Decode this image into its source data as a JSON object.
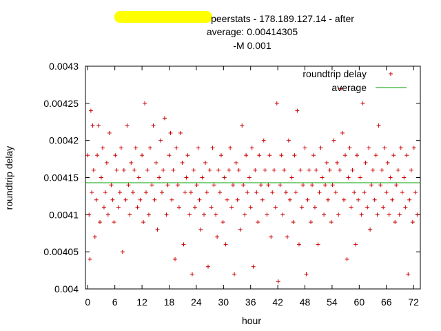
{
  "chart_data": {
    "type": "scatter",
    "title_lines": [
      "peerstats - 178.189.127.14 - after",
      "average: 0.00414305",
      "-M 0.001"
    ],
    "xlabel": "hour",
    "ylabel": "roundtrip delay",
    "xlim": [
      -0.5,
      73.5
    ],
    "ylim": [
      0.004,
      0.0043
    ],
    "x_ticks": [
      0,
      6,
      12,
      18,
      24,
      30,
      36,
      42,
      48,
      54,
      60,
      66,
      72
    ],
    "y_ticks": [
      0.004,
      0.00405,
      0.0041,
      0.00415,
      0.0042,
      0.00425,
      0.0043
    ],
    "y_tick_labels": [
      "0.004",
      "0.00405",
      "0.0041",
      "0.00415",
      "0.0042",
      "0.00425",
      "0.0043"
    ],
    "grid": false,
    "legend_position": "top-right",
    "series": [
      {
        "name": "roundtrip delay",
        "marker": "plus",
        "color": "#cc0000",
        "points": [
          [
            0.0,
            0.00418
          ],
          [
            0.3,
            0.0041
          ],
          [
            0.5,
            0.00404
          ],
          [
            0.7,
            0.00424
          ],
          [
            0.9,
            0.00413
          ],
          [
            1.1,
            0.00422
          ],
          [
            1.3,
            0.00416
          ],
          [
            1.6,
            0.00407
          ],
          [
            1.9,
            0.00412
          ],
          [
            2.1,
            0.00418
          ],
          [
            2.4,
            0.00422
          ],
          [
            2.7,
            0.00409
          ],
          [
            3.0,
            0.00415
          ],
          [
            3.3,
            0.00419
          ],
          [
            3.6,
            0.00411
          ],
          [
            3.9,
            0.00413
          ],
          [
            4.2,
            0.00417
          ],
          [
            4.5,
            0.0041
          ],
          [
            4.8,
            0.00421
          ],
          [
            5.2,
            0.00414
          ],
          [
            5.5,
            0.00412
          ],
          [
            5.8,
            0.00409
          ],
          [
            6.1,
            0.00418
          ],
          [
            6.4,
            0.00416
          ],
          [
            6.8,
            0.00411
          ],
          [
            7.1,
            0.00413
          ],
          [
            7.4,
            0.00419
          ],
          [
            7.7,
            0.00405
          ],
          [
            8.0,
            0.00416
          ],
          [
            8.4,
            0.00412
          ],
          [
            8.7,
            0.00422
          ],
          [
            9.0,
            0.00414
          ],
          [
            9.3,
            0.0041
          ],
          [
            9.6,
            0.00417
          ],
          [
            10.0,
            0.00413
          ],
          [
            10.3,
            0.00416
          ],
          [
            10.6,
            0.00419
          ],
          [
            11.0,
            0.00411
          ],
          [
            11.3,
            0.00415
          ],
          [
            11.6,
            0.00412
          ],
          [
            12.0,
            0.00418
          ],
          [
            12.3,
            0.00409
          ],
          [
            12.6,
            0.00425
          ],
          [
            12.9,
            0.00413
          ],
          [
            13.2,
            0.00416
          ],
          [
            13.5,
            0.0041
          ],
          [
            13.8,
            0.00419
          ],
          [
            14.2,
            0.00414
          ],
          [
            14.5,
            0.00422
          ],
          [
            14.8,
            0.00412
          ],
          [
            15.1,
            0.00417
          ],
          [
            15.4,
            0.00408
          ],
          [
            15.8,
            0.00415
          ],
          [
            16.1,
            0.0042
          ],
          [
            16.4,
            0.00413
          ],
          [
            16.7,
            0.00416
          ],
          [
            17.0,
            0.00423
          ],
          [
            17.4,
            0.0041
          ],
          [
            17.7,
            0.00414
          ],
          [
            18.0,
            0.00418
          ],
          [
            18.3,
            0.00421
          ],
          [
            18.6,
            0.00412
          ],
          [
            18.9,
            0.00416
          ],
          [
            19.3,
            0.00404
          ],
          [
            19.6,
            0.00419
          ],
          [
            19.9,
            0.00414
          ],
          [
            20.2,
            0.00411
          ],
          [
            20.5,
            0.00421
          ],
          [
            20.9,
            0.00417
          ],
          [
            21.2,
            0.00406
          ],
          [
            21.5,
            0.00413
          ],
          [
            21.8,
            0.00415
          ],
          [
            22.1,
            0.00418
          ],
          [
            22.5,
            0.0041
          ],
          [
            22.8,
            0.00413
          ],
          [
            23.1,
            0.00402
          ],
          [
            23.4,
            0.00416
          ],
          [
            23.7,
            0.00411
          ],
          [
            24.1,
            0.00414
          ],
          [
            24.4,
            0.00419
          ],
          [
            24.7,
            0.00412
          ],
          [
            25.0,
            0.00408
          ],
          [
            25.3,
            0.00415
          ],
          [
            25.7,
            0.0041
          ],
          [
            26.0,
            0.00417
          ],
          [
            26.3,
            0.00413
          ],
          [
            26.6,
            0.00403
          ],
          [
            27.0,
            0.00416
          ],
          [
            27.3,
            0.00411
          ],
          [
            27.6,
            0.00419
          ],
          [
            27.9,
            0.00414
          ],
          [
            28.3,
            0.0041
          ],
          [
            28.6,
            0.00407
          ],
          [
            28.9,
            0.00416
          ],
          [
            29.2,
            0.00413
          ],
          [
            29.5,
            0.00418
          ],
          [
            29.9,
            0.00409
          ],
          [
            30.2,
            0.00415
          ],
          [
            30.5,
            0.00406
          ],
          [
            30.8,
            0.00412
          ],
          [
            31.2,
            0.00416
          ],
          [
            31.5,
            0.00419
          ],
          [
            31.8,
            0.00411
          ],
          [
            32.1,
            0.00414
          ],
          [
            32.4,
            0.00402
          ],
          [
            32.8,
            0.00417
          ],
          [
            33.1,
            0.00412
          ],
          [
            33.4,
            0.00416
          ],
          [
            33.7,
            0.00408
          ],
          [
            34.1,
            0.00422
          ],
          [
            34.4,
            0.00414
          ],
          [
            34.7,
            0.0041
          ],
          [
            35.0,
            0.00418
          ],
          [
            35.3,
            0.00413
          ],
          [
            35.7,
            0.00415
          ],
          [
            36.0,
            0.00411
          ],
          [
            36.3,
            0.00419
          ],
          [
            36.6,
            0.00403
          ],
          [
            37.0,
            0.00416
          ],
          [
            37.3,
            0.00413
          ],
          [
            37.6,
            0.00409
          ],
          [
            37.9,
            0.00418
          ],
          [
            38.3,
            0.00414
          ],
          [
            38.6,
            0.00412
          ],
          [
            38.9,
            0.0042
          ],
          [
            39.2,
            0.00416
          ],
          [
            39.6,
            0.0041
          ],
          [
            39.9,
            0.00414
          ],
          [
            40.2,
            0.00418
          ],
          [
            40.5,
            0.00407
          ],
          [
            40.8,
            0.00413
          ],
          [
            41.2,
            0.00416
          ],
          [
            41.5,
            0.00411
          ],
          [
            41.8,
            0.00425
          ],
          [
            42.1,
            0.00401
          ],
          [
            42.5,
            0.00414
          ],
          [
            42.8,
            0.00418
          ],
          [
            43.1,
            0.0041
          ],
          [
            43.4,
            0.00416
          ],
          [
            43.8,
            0.00413
          ],
          [
            44.1,
            0.00407
          ],
          [
            44.4,
            0.0042
          ],
          [
            44.7,
            0.00412
          ],
          [
            45.1,
            0.00415
          ],
          [
            45.4,
            0.00409
          ],
          [
            45.7,
            0.00418
          ],
          [
            46.0,
            0.00413
          ],
          [
            46.3,
            0.00424
          ],
          [
            46.7,
            0.00406
          ],
          [
            47.0,
            0.00416
          ],
          [
            47.3,
            0.00411
          ],
          [
            47.6,
            0.00414
          ],
          [
            48.0,
            0.00419
          ],
          [
            48.3,
            0.00402
          ],
          [
            48.6,
            0.00412
          ],
          [
            48.9,
            0.00416
          ],
          [
            49.3,
            0.00409
          ],
          [
            49.6,
            0.00414
          ],
          [
            49.9,
            0.00418
          ],
          [
            50.2,
            0.00411
          ],
          [
            50.5,
            0.00416
          ],
          [
            50.9,
            0.00406
          ],
          [
            51.2,
            0.00413
          ],
          [
            51.5,
            0.00419
          ],
          [
            51.8,
            0.00415
          ],
          [
            52.2,
            0.0041
          ],
          [
            52.5,
            0.00414
          ],
          [
            52.8,
            0.00417
          ],
          [
            53.1,
            0.00412
          ],
          [
            53.5,
            0.00416
          ],
          [
            53.8,
            0.00409
          ],
          [
            54.1,
            0.00414
          ],
          [
            54.4,
            0.0042
          ],
          [
            54.8,
            0.00413
          ],
          [
            55.1,
            0.00417
          ],
          [
            55.4,
            0.0041
          ],
          [
            55.7,
            0.00416
          ],
          [
            56.0,
            0.00427
          ],
          [
            56.3,
            0.00421
          ],
          [
            56.6,
            0.00412
          ],
          [
            56.9,
            0.00418
          ],
          [
            57.3,
            0.00404
          ],
          [
            57.6,
            0.00415
          ],
          [
            57.9,
            0.00419
          ],
          [
            58.2,
            0.00411
          ],
          [
            58.5,
            0.00416
          ],
          [
            58.9,
            0.00413
          ],
          [
            59.2,
            0.00406
          ],
          [
            59.5,
            0.00418
          ],
          [
            59.8,
            0.00412
          ],
          [
            60.2,
            0.00415
          ],
          [
            60.5,
            0.0041
          ],
          [
            60.8,
            0.00425
          ],
          [
            61.1,
            0.00413
          ],
          [
            61.4,
            0.00417
          ],
          [
            61.8,
            0.00411
          ],
          [
            62.1,
            0.00419
          ],
          [
            62.4,
            0.00408
          ],
          [
            62.7,
            0.00414
          ],
          [
            63.0,
            0.00416
          ],
          [
            63.4,
            0.00412
          ],
          [
            63.7,
            0.00418
          ],
          [
            64.0,
            0.0041
          ],
          [
            64.3,
            0.00422
          ],
          [
            64.7,
            0.00414
          ],
          [
            65.0,
            0.00416
          ],
          [
            65.3,
            0.00411
          ],
          [
            65.6,
            0.00419
          ],
          [
            66.0,
            0.00413
          ],
          [
            66.3,
            0.00417
          ],
          [
            66.6,
            0.0041
          ],
          [
            66.9,
            0.00415
          ],
          [
            67.3,
            0.00412
          ],
          [
            67.6,
            0.00418
          ],
          [
            67.9,
            0.00409
          ],
          [
            68.2,
            0.00414
          ],
          [
            68.6,
            0.00416
          ],
          [
            68.9,
            0.0041
          ],
          [
            69.2,
            0.00419
          ],
          [
            69.5,
            0.00413
          ],
          [
            69.9,
            0.00415
          ],
          [
            70.2,
            0.00411
          ],
          [
            70.5,
            0.00418
          ],
          [
            70.8,
            0.00402
          ],
          [
            71.1,
            0.00412
          ],
          [
            71.5,
            0.00416
          ],
          [
            71.8,
            0.00409
          ],
          [
            72.1,
            0.00419
          ],
          [
            72.4,
            0.00413
          ],
          [
            72.8,
            0.0041
          ]
        ]
      },
      {
        "name": "average",
        "marker": "line",
        "color": "#00a000",
        "y": 0.00414305
      }
    ]
  }
}
